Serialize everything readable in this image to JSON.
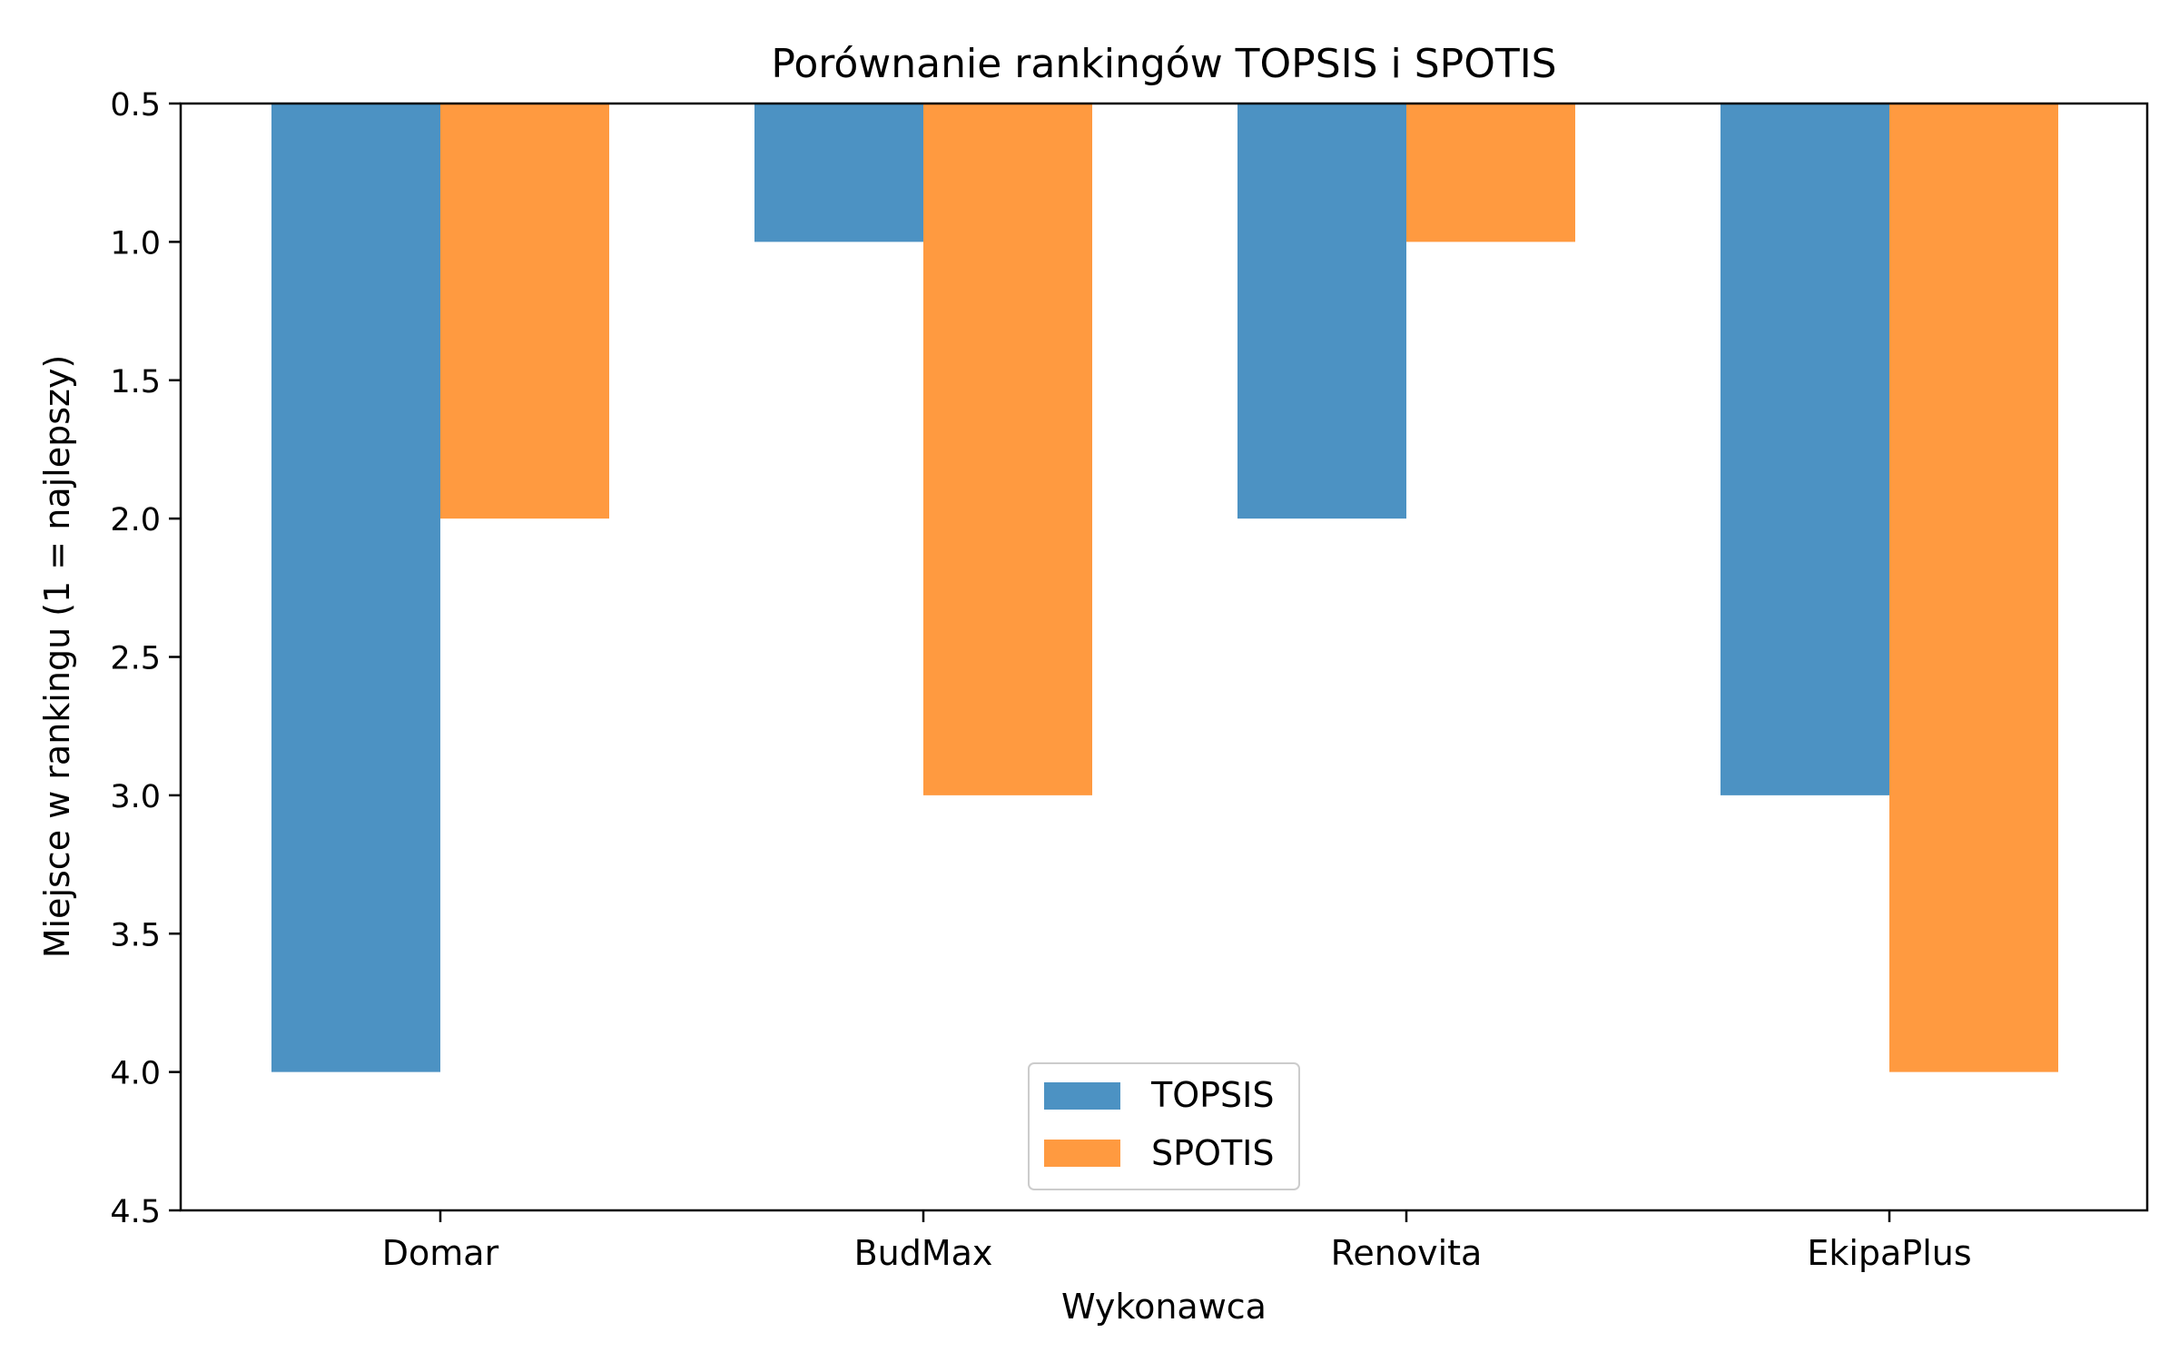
{
  "chart_data": {
    "type": "bar",
    "title": "Porównanie rankingów TOPSIS i SPOTIS",
    "xlabel": "Wykonawca",
    "ylabel": "Miejsce w rankingu (1 = najlepszy)",
    "categories": [
      "Domar",
      "BudMax",
      "Renovita",
      "EkipaPlus"
    ],
    "series": [
      {
        "name": "TOPSIS",
        "values": [
          4,
          1,
          2,
          3
        ],
        "color": "#4c92c3"
      },
      {
        "name": "SPOTIS",
        "values": [
          2,
          3,
          1,
          4
        ],
        "color": "#ff9a40"
      }
    ],
    "ylim": [
      0.5,
      4.5
    ],
    "y_inverted": true,
    "bar_baseline": 0.5,
    "yticks": [
      "0.5",
      "1.0",
      "1.5",
      "2.0",
      "2.5",
      "3.0",
      "3.5",
      "4.0",
      "4.5"
    ],
    "legend_position": "lower center",
    "grid": false
  }
}
